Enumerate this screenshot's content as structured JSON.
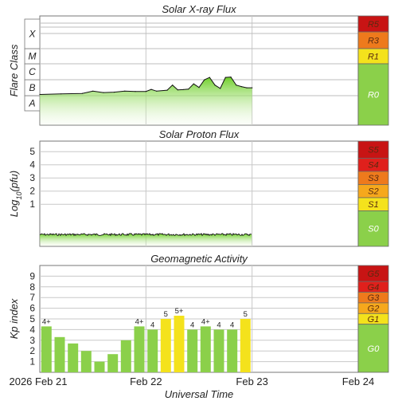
{
  "chart_data": [
    {
      "type": "area",
      "title": "Solar X-ray Flux",
      "ylabel": "Flare Class",
      "y_scale": "log",
      "y_classes": [
        "A",
        "B",
        "C",
        "M",
        "X"
      ],
      "x_ticks": [
        "2026 Feb 21",
        "Feb 22",
        "Feb 23",
        "Feb 24"
      ],
      "data_extent": [
        "Feb 21 00:00",
        "Feb 23 00:00"
      ],
      "series": [
        {
          "x_days": [
            0,
            0.2,
            0.4,
            0.5,
            0.6,
            0.7,
            0.8,
            0.9,
            1.0,
            1.05,
            1.1,
            1.2,
            1.25,
            1.3,
            1.35,
            1.4,
            1.45,
            1.5,
            1.55,
            1.6,
            1.65,
            1.7,
            1.75,
            1.8,
            1.85,
            1.9,
            1.95,
            2.0
          ],
          "flare_class": [
            "B1.2",
            "B1.3",
            "B1.4",
            "B2.0",
            "B1.6",
            "B1.7",
            "B2.0",
            "B1.9",
            "B1.9",
            "B2.6",
            "B2.0",
            "B2.3",
            "B5.0",
            "B2.4",
            "B2.5",
            "B2.7",
            "B6.0",
            "B3.5",
            "C1.1",
            "C1.6",
            "B5.0",
            "B3.0",
            "C1.6",
            "C1.7",
            "B5.0",
            "B4.0",
            "B3.3",
            "B3.3"
          ]
        }
      ],
      "scale": [
        {
          "label": "R5",
          "color": "#c81414"
        },
        {
          "label": "R3",
          "color": "#ee7a1c"
        },
        {
          "label": "R1",
          "color": "#f4e21c"
        },
        {
          "label": "R0",
          "color": "#8bd04a"
        }
      ]
    },
    {
      "type": "area",
      "title": "Solar Proton Flux",
      "ylabel": "Log10(pfu)",
      "ylabel_parts": [
        "Log",
        "10",
        "(pfu)"
      ],
      "y_ticks": [
        "1",
        "2",
        "3",
        "4",
        "5"
      ],
      "ylim": [
        -2.2,
        5.8
      ],
      "series": [
        {
          "x_days": [
            0,
            2.0
          ],
          "log10_pfu": [
            -1.3,
            -1.3
          ]
        }
      ],
      "scale": [
        {
          "label": "S5",
          "color": "#c81414"
        },
        {
          "label": "S4",
          "color": "#e0201c"
        },
        {
          "label": "S3",
          "color": "#ee7a1c"
        },
        {
          "label": "S2",
          "color": "#f6a81c"
        },
        {
          "label": "S1",
          "color": "#f4e21c"
        },
        {
          "label": "S0",
          "color": "#8bd04a"
        }
      ]
    },
    {
      "type": "bar",
      "title": "Geomagnetic Activity",
      "ylabel": "Kp index",
      "y_ticks": [
        "1",
        "2",
        "3",
        "4",
        "5",
        "6",
        "7",
        "8",
        "9"
      ],
      "ylim": [
        0,
        10
      ],
      "xlabel": "Universal Time",
      "x_ticks": [
        "2026 Feb 21",
        "Feb 22",
        "Feb 23",
        "Feb 24"
      ],
      "bars": [
        {
          "kp": 4.3,
          "label": "4+",
          "level": "G0"
        },
        {
          "kp": 3.3,
          "label": "",
          "level": "G0"
        },
        {
          "kp": 2.7,
          "label": "",
          "level": "G0"
        },
        {
          "kp": 2.0,
          "label": "",
          "level": "G0"
        },
        {
          "kp": 1.0,
          "label": "",
          "level": "G0"
        },
        {
          "kp": 1.7,
          "label": "",
          "level": "G0"
        },
        {
          "kp": 3.0,
          "label": "",
          "level": "G0"
        },
        {
          "kp": 4.3,
          "label": "4+",
          "level": "G0"
        },
        {
          "kp": 4.0,
          "label": "4",
          "level": "G0"
        },
        {
          "kp": 5.0,
          "label": "5",
          "level": "G1"
        },
        {
          "kp": 5.3,
          "label": "5+",
          "level": "G1"
        },
        {
          "kp": 4.0,
          "label": "4",
          "level": "G0"
        },
        {
          "kp": 4.3,
          "label": "4+",
          "level": "G0"
        },
        {
          "kp": 4.0,
          "label": "4",
          "level": "G0"
        },
        {
          "kp": 4.0,
          "label": "4",
          "level": "G0"
        },
        {
          "kp": 5.0,
          "label": "5",
          "level": "G1"
        }
      ],
      "scale": [
        {
          "label": "G5",
          "color": "#c81414"
        },
        {
          "label": "G4",
          "color": "#e0201c"
        },
        {
          "label": "G3",
          "color": "#ee7a1c"
        },
        {
          "label": "G2",
          "color": "#f6a81c"
        },
        {
          "label": "G1",
          "color": "#f4e21c"
        },
        {
          "label": "G0",
          "color": "#8bd04a"
        }
      ],
      "colors": {
        "G0": "#8bd04a",
        "G1": "#f4e21c",
        "outline": "#6a6a6a"
      }
    }
  ]
}
